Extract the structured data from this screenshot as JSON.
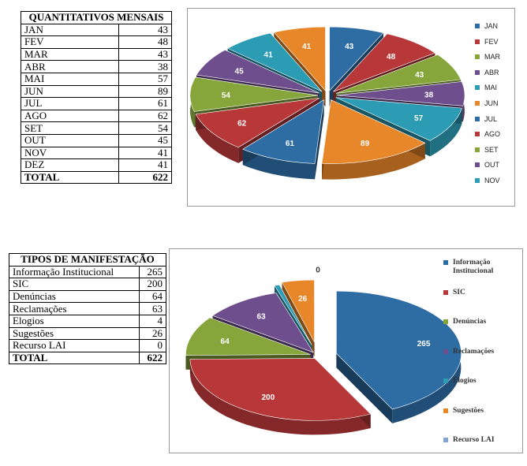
{
  "table1": {
    "title": "QUANTITATIVOS MENSAIS",
    "rows": [
      {
        "label": "JAN",
        "value": "43"
      },
      {
        "label": "FEV",
        "value": "48"
      },
      {
        "label": "MAR",
        "value": "43"
      },
      {
        "label": "ABR",
        "value": "38"
      },
      {
        "label": "MAI",
        "value": "57"
      },
      {
        "label": "JUN",
        "value": "89"
      },
      {
        "label": "JUL",
        "value": "61"
      },
      {
        "label": "AGO",
        "value": "62"
      },
      {
        "label": "SET",
        "value": "54"
      },
      {
        "label": "OUT",
        "value": "45"
      },
      {
        "label": "NOV",
        "value": "41"
      },
      {
        "label": "DEZ",
        "value": "41"
      }
    ],
    "total_label": "TOTAL",
    "total_value": "622"
  },
  "table2": {
    "title": "TIPOS DE MANIFESTAÇÃO",
    "rows": [
      {
        "label": "Informação Institucional",
        "value": "265"
      },
      {
        "label": "SIC",
        "value": "200"
      },
      {
        "label": "Denúncias",
        "value": "64"
      },
      {
        "label": "Reclamações",
        "value": "63"
      },
      {
        "label": "Elogios",
        "value": "4"
      },
      {
        "label": "Sugestões",
        "value": "26"
      },
      {
        "label": "Recurso LAI",
        "value": "0"
      }
    ],
    "total_label": "TOTAL",
    "total_value": "622"
  },
  "chart_data": [
    {
      "type": "pie",
      "title": "",
      "exploded": true,
      "categories": [
        "JAN",
        "FEV",
        "MAR",
        "ABR",
        "MAI",
        "JUN",
        "JUL",
        "AGO",
        "SET",
        "OUT",
        "NOV",
        "DEZ"
      ],
      "values": [
        43,
        48,
        43,
        38,
        57,
        89,
        61,
        62,
        54,
        45,
        41,
        41
      ],
      "colors": [
        "#2E6DA4",
        "#B8383A",
        "#86A63C",
        "#6F4E8E",
        "#2C9CB5",
        "#E8862A",
        "#2E6DA4",
        "#B8383A",
        "#86A63C",
        "#6F4E8E",
        "#2C9CB5",
        "#E8862A"
      ],
      "legend": [
        "JAN",
        "FEV",
        "MAR",
        "ABR",
        "MAI",
        "JUN",
        "JUL",
        "AGO",
        "SET",
        "OUT",
        "NOV"
      ],
      "legend_position": "right"
    },
    {
      "type": "pie",
      "title": "",
      "exploded": true,
      "categories": [
        "Informação Institucional",
        "SIC",
        "Denúncias",
        "Reclamações",
        "Elogios",
        "Sugestões",
        "Recurso LAI"
      ],
      "values": [
        265,
        200,
        64,
        63,
        4,
        26,
        0
      ],
      "colors": [
        "#2E6DA4",
        "#B8383A",
        "#86A63C",
        "#6F4E8E",
        "#2C9CB5",
        "#E8862A",
        "#7FA6D2"
      ],
      "legend": [
        "Informação Institucional",
        "SIC",
        "Denúncias",
        "Reclamações",
        "Elogios",
        "Sugestões",
        "Recurso LAI"
      ],
      "legend_position": "right"
    }
  ]
}
